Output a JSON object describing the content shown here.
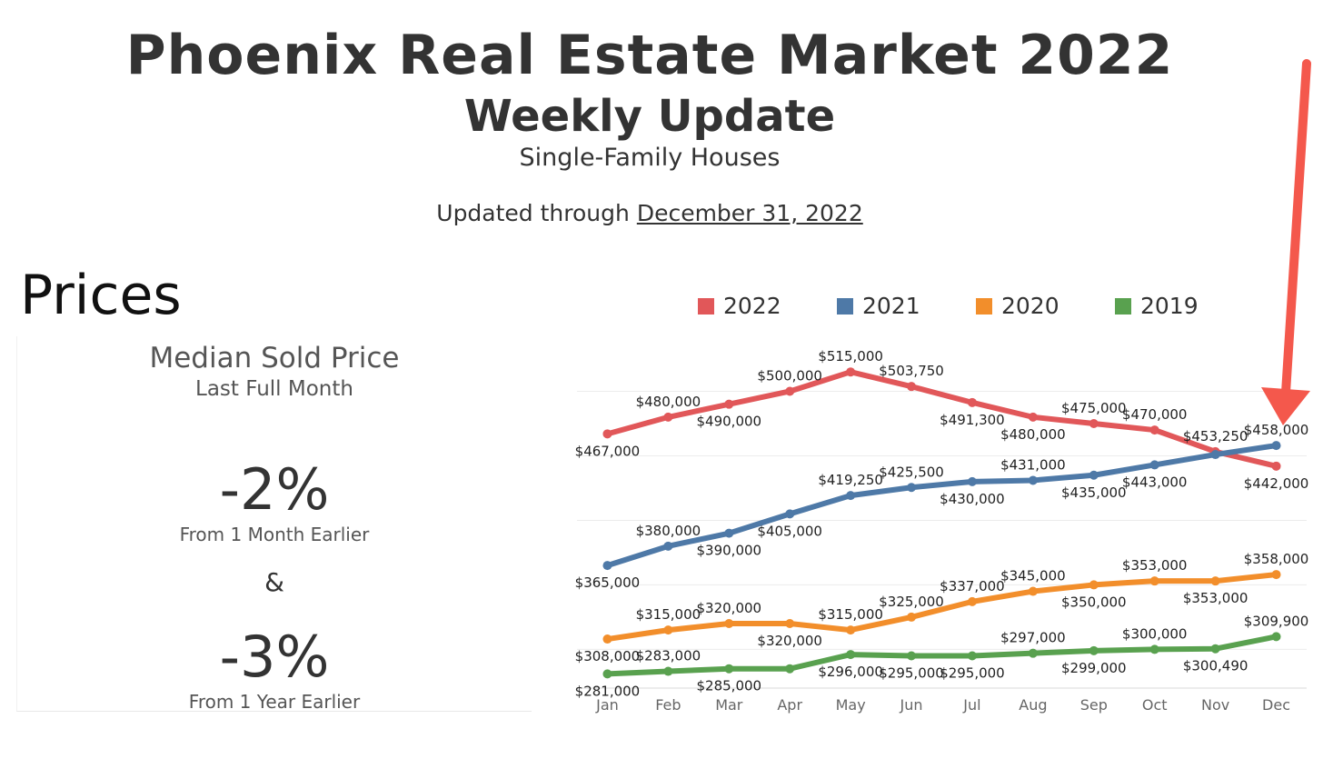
{
  "header": {
    "title": "Phoenix Real Estate Market 2022",
    "subtitle": "Weekly Update",
    "category": "Single-Family Houses",
    "updated_prefix": "Updated through",
    "updated_date": "December 31, 2022"
  },
  "section": {
    "heading": "Prices"
  },
  "kpi": {
    "title": "Median Sold Price",
    "subtitle": "Last Full Month",
    "month_change": "-2%",
    "month_label": "From 1 Month Earlier",
    "ampersand": "&",
    "year_change": "-3%",
    "year_label": "From 1 Year Earlier"
  },
  "legend": [
    {
      "label": "2022",
      "color": "#e15759"
    },
    {
      "label": "2021",
      "color": "#4e79a7"
    },
    {
      "label": "2020",
      "color": "#f28e2b"
    },
    {
      "label": "2019",
      "color": "#59a14f"
    }
  ],
  "annotation": {
    "arrow_color": "#f4584c",
    "arrow_icon": "down-arrow-icon"
  },
  "chart_data": {
    "type": "line",
    "categories": [
      "Jan",
      "Feb",
      "Mar",
      "Apr",
      "May",
      "Jun",
      "Jul",
      "Aug",
      "Sep",
      "Oct",
      "Nov",
      "Dec"
    ],
    "grid": true,
    "legend_position": "top",
    "series": [
      {
        "name": "2022",
        "color": "#e15759",
        "values": [
          467000,
          480000,
          490000,
          500000,
          515000,
          503750,
          491300,
          480000,
          475000,
          470000,
          453250,
          442000
        ],
        "labels": [
          "$467,000",
          "$480,000",
          "$490,000",
          "$500,000",
          "$515,000",
          "$503,750",
          "$491,300",
          "$480,000",
          "$475,000",
          "$470,000",
          "$453,250",
          "$442,000"
        ]
      },
      {
        "name": "2021",
        "color": "#4e79a7",
        "values": [
          365000,
          380000,
          390000,
          405000,
          419250,
          425500,
          430000,
          431000,
          435000,
          443000,
          451000,
          458000
        ],
        "labels": [
          "$365,000",
          "$380,000",
          "$390,000",
          "$405,000",
          "$419,250",
          "$425,500",
          "$430,000",
          "$431,000",
          "$435,000",
          "$443,000",
          null,
          "$458,000"
        ]
      },
      {
        "name": "2020",
        "color": "#f28e2b",
        "values": [
          308000,
          315000,
          320000,
          320000,
          315000,
          325000,
          337000,
          345000,
          350000,
          353000,
          353000,
          358000
        ],
        "labels": [
          "$308,000",
          "$315,000",
          "$320,000",
          "$320,000",
          "$315,000",
          "$325,000",
          "$337,000",
          "$345,000",
          "$350,000",
          "$353,000",
          "$353,000",
          "$358,000"
        ]
      },
      {
        "name": "2019",
        "color": "#59a14f",
        "values": [
          281000,
          283000,
          285000,
          285000,
          296000,
          295000,
          295000,
          297000,
          299000,
          300000,
          300490,
          309900
        ],
        "labels": [
          "$281,000",
          "$283,000",
          "$285,000",
          null,
          "$296,000",
          "$295,000",
          "$295,000",
          "$297,000",
          "$299,000",
          "$300,000",
          "$300,490",
          "$309,900"
        ]
      }
    ]
  }
}
